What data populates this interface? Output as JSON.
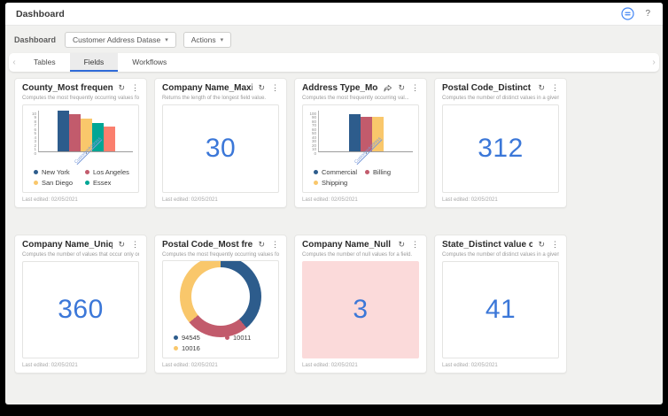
{
  "app": {
    "title": "Dashboard",
    "help_label": "?"
  },
  "toolbar": {
    "breadcrumb": "Dashboard",
    "dataset_dropdown": "Customer Address Datase",
    "dataset_caret": "▾",
    "actions_dropdown": "Actions",
    "actions_caret": "▾"
  },
  "tabs": [
    {
      "label": "Tables"
    },
    {
      "label": "Fields"
    },
    {
      "label": "Workflows"
    }
  ],
  "tabbar": {
    "left_chevron": "‹",
    "right_chevron": "›"
  },
  "meta": {
    "last_edited": "Last edited: 02/05/2021",
    "refresh_glyph": "↻",
    "kebab_glyph": "⋮"
  },
  "colors": {
    "accent_blue": "#3b77d8",
    "bar_navy": "#2d5c8c",
    "bar_red": "#c25b6c",
    "bar_yellow": "#f9c76b",
    "bar_teal": "#00a695",
    "bar_salmon": "#fa7f6e",
    "alert_pink": "#fbdada",
    "tab_underline": "#2f6bd8"
  },
  "cards": [
    {
      "title": "County_Most frequent values",
      "description": "Computes the most frequently occurring values for ...",
      "type": "bar",
      "chart_data": {
        "type": "bar",
        "ymax": 10,
        "ystep": 1,
        "x_label": "CustomerAddress",
        "series": [
          {
            "name": "New York",
            "value": 10,
            "color": "#2d5c8c"
          },
          {
            "name": "Los Angeles",
            "value": 9,
            "color": "#c25b6c"
          },
          {
            "name": "San Diego",
            "value": 8,
            "color": "#f9c76b"
          },
          {
            "name": "Essex",
            "value": 7,
            "color": "#00a695"
          },
          {
            "name": "",
            "value": 6,
            "color": "#fa7f6e"
          }
        ]
      }
    },
    {
      "title": "Company Name_Maximum ...",
      "description": "Returns the length of the longest field value.",
      "type": "number",
      "value": "30"
    },
    {
      "title": "Address Type_Most fre...",
      "description": "Computes the most frequently occurring val...",
      "type": "bar",
      "has_share": true,
      "chart_data": {
        "type": "bar",
        "ymax": 100,
        "ystep": 10,
        "x_label": "CustomerAddress",
        "series": [
          {
            "name": "Commercial",
            "value": 92,
            "color": "#2d5c8c"
          },
          {
            "name": "Billing",
            "value": 85,
            "color": "#c25b6c"
          },
          {
            "name": "Shipping",
            "value": 84,
            "color": "#f9c76b"
          }
        ]
      }
    },
    {
      "title": "Postal Code_Distinct value ...",
      "description": "Computes the number of distinct values in a given ...",
      "type": "number",
      "value": "312"
    },
    {
      "title": "Company Name_Unique co...",
      "description": "Computes the number of values that occur only once.",
      "type": "number",
      "value": "360"
    },
    {
      "title": "Postal Code_Most frequent...",
      "description": "Computes the most frequently occurring values for ...",
      "type": "donut",
      "chart_data": {
        "type": "pie",
        "slices": [
          {
            "name": "94545",
            "pct": 39,
            "color": "#2d5c8c"
          },
          {
            "name": "10011",
            "pct": 25,
            "color": "#c25b6c"
          },
          {
            "name": "10016",
            "pct": 36,
            "color": "#f9c76b"
          }
        ]
      }
    },
    {
      "title": "Company Name_Null count",
      "description": "Computes the number of null values for a field.",
      "type": "number",
      "value": "3",
      "alert": true
    },
    {
      "title": "State_Distinct value count",
      "description": "Computes the number of distinct values in a given ...",
      "type": "number",
      "value": "41"
    }
  ]
}
